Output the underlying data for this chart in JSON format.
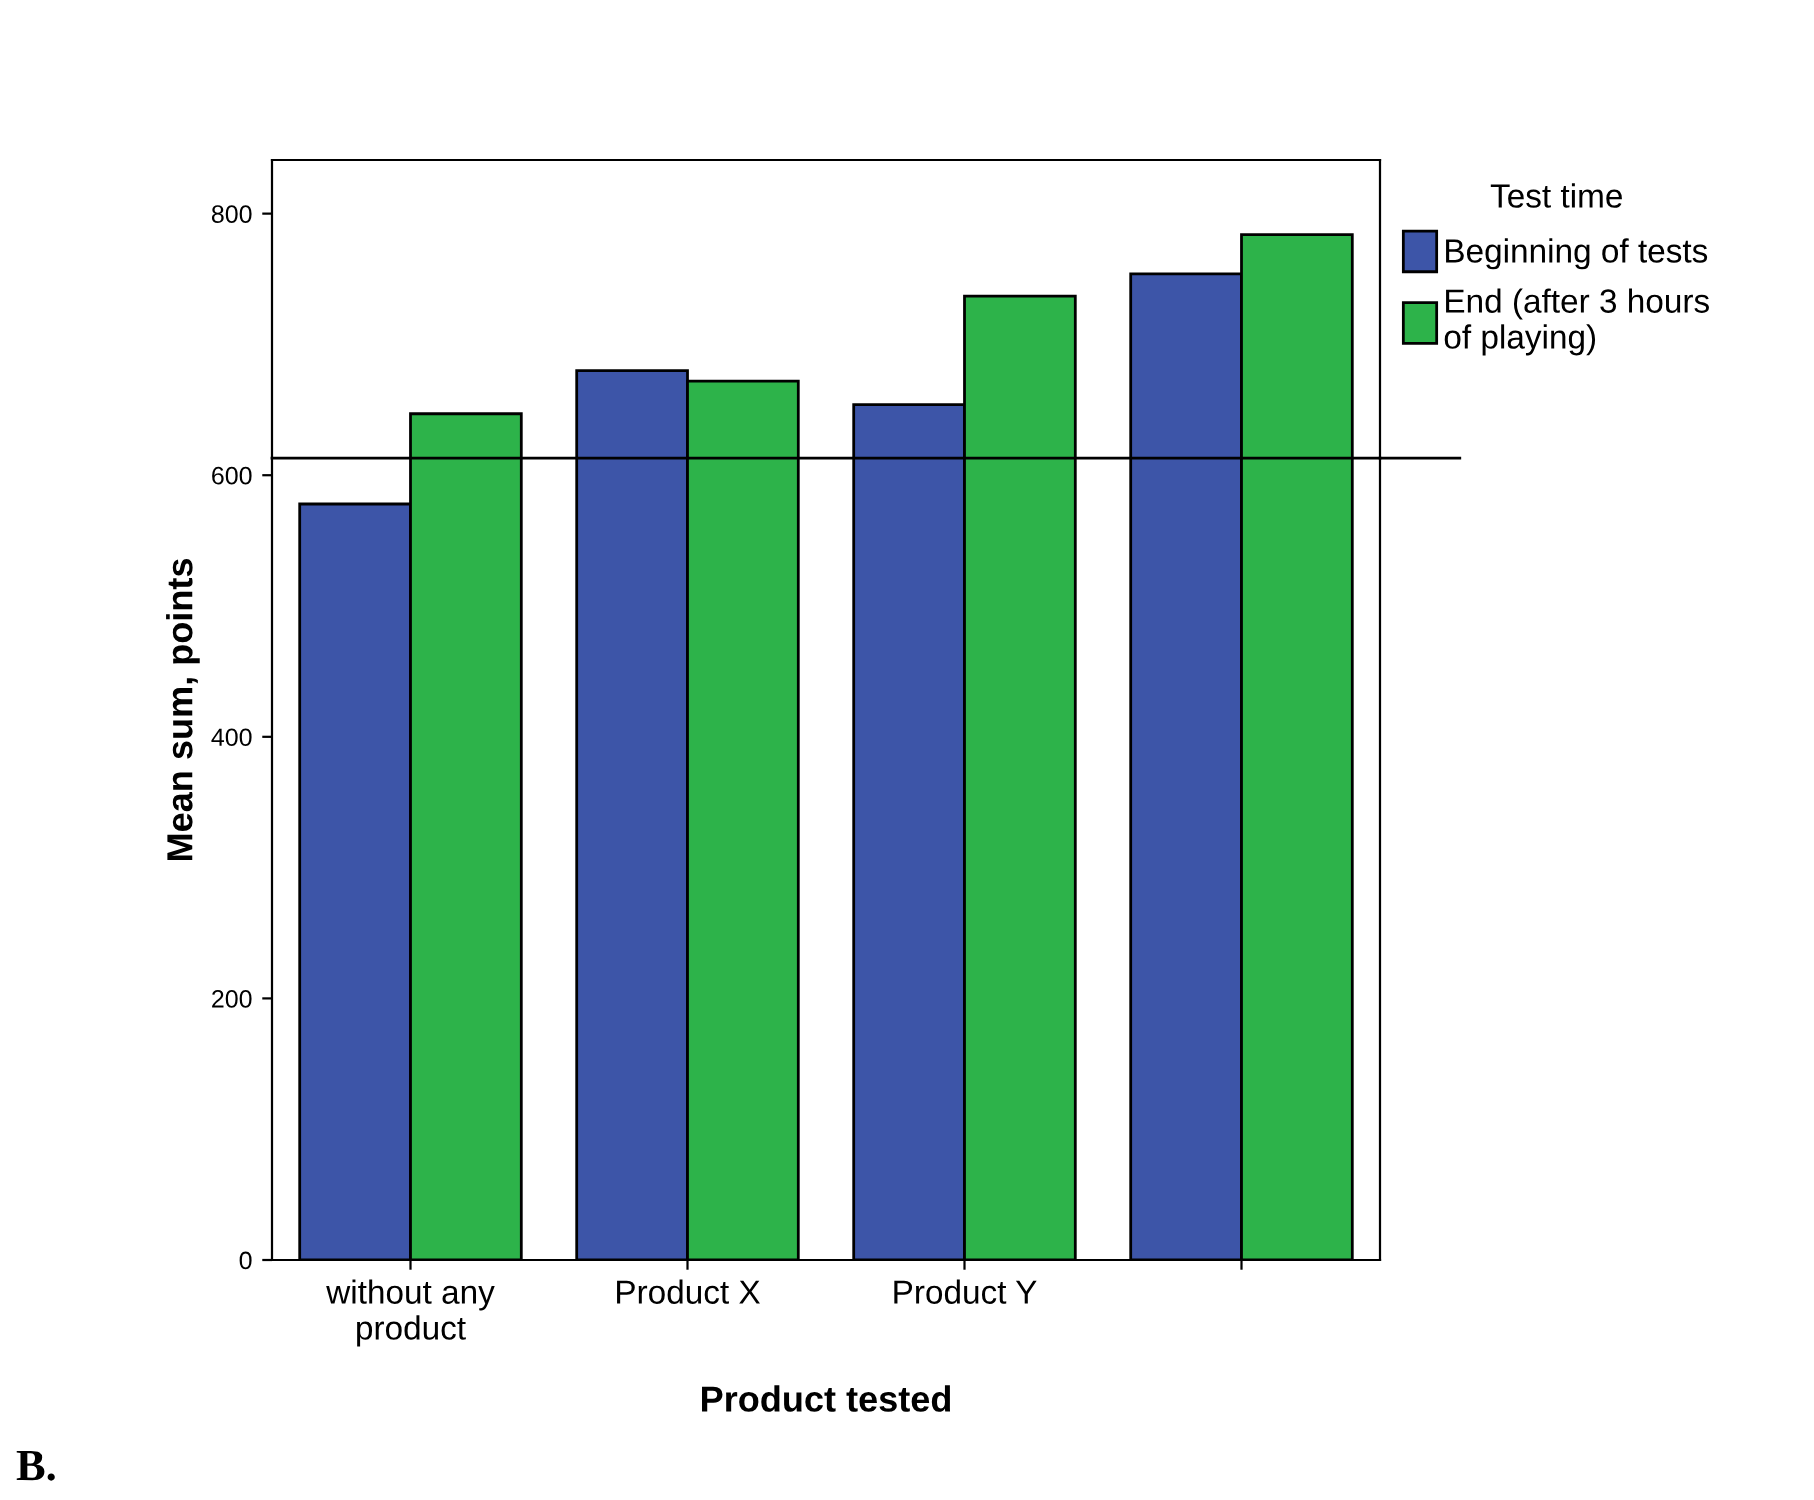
{
  "chart_data": {
    "type": "bar",
    "xlabel": "Product tested",
    "ylabel": "Mean sum, points",
    "legend_title": "Test time",
    "categories": [
      "without any\nproduct",
      "Product X",
      "Product Y",
      null
    ],
    "series": [
      {
        "name": "Beginning of tests",
        "color": "#3d55a8",
        "values": [
          578,
          680,
          654,
          754
        ]
      },
      {
        "name": "End (after 3 hours\nof playing)",
        "color": "#2db34a",
        "values": [
          647,
          672,
          737,
          784
        ]
      }
    ],
    "ylim": [
      0,
      841
    ],
    "yticks": [
      0,
      200,
      400,
      600,
      800
    ],
    "grid": false,
    "legend": "top right",
    "ref_lines": [
      {
        "axis": "y",
        "value": 613,
        "color": "#000000"
      }
    ],
    "annotations": [
      "B."
    ]
  }
}
